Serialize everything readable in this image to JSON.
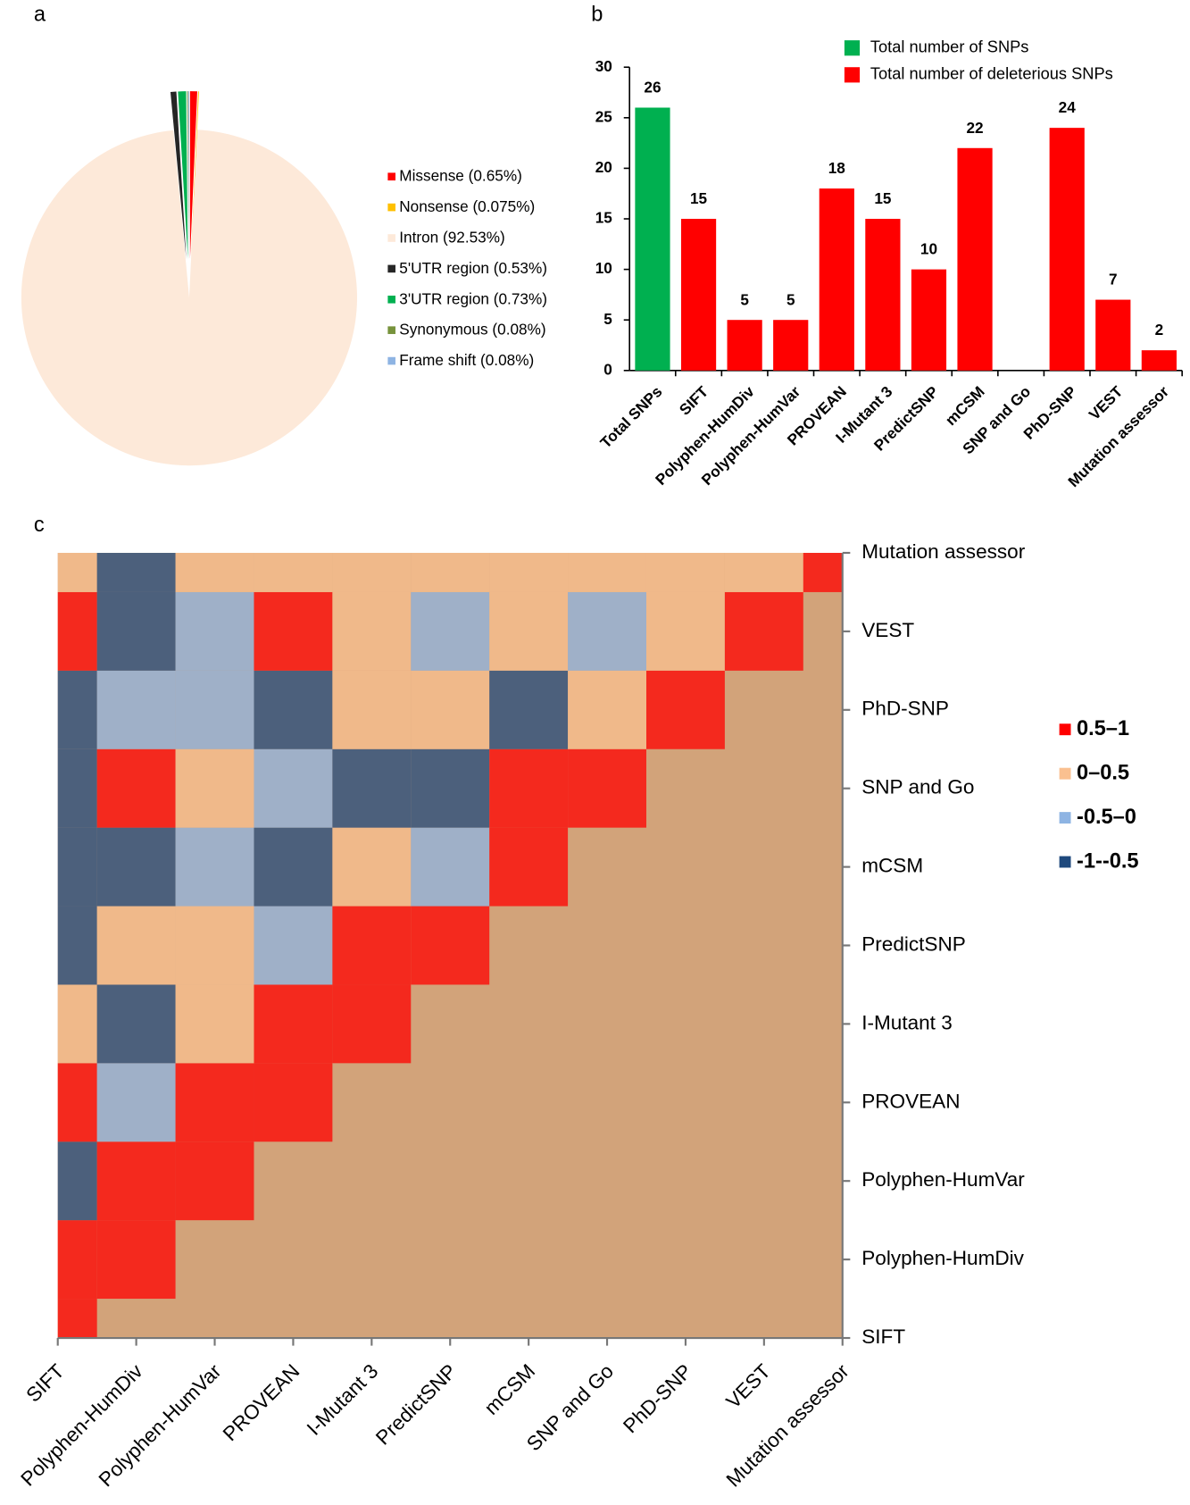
{
  "chart_data": [
    {
      "type": "pie",
      "label": "a",
      "categories": [
        "Missense",
        "Nonsense",
        "Intron",
        "5'UTR region",
        "3'UTR region",
        "Synonymous",
        "Frame shift"
      ],
      "values": [
        0.65,
        0.075,
        92.53,
        0.53,
        0.73,
        0.08,
        0.08
      ],
      "value_labels": [
        "(0.65%)",
        "(0.075%)",
        "(92.53%)",
        "(0.53%)",
        "(0.73%)",
        "(0.08%)",
        "(0.08%)"
      ],
      "colors": [
        "#ff0000",
        "#ffc000",
        "#fde9d9",
        "#262626",
        "#00b050",
        "#77933c",
        "#8eb4e3"
      ],
      "exploded": [
        true,
        true,
        false,
        true,
        true,
        true,
        true
      ]
    },
    {
      "type": "bar",
      "label": "b",
      "categories": [
        "Total SNPs",
        "SIFT",
        "Polyphen-HumDiv",
        "Polyphen-HumVar",
        "PROVEAN",
        "I-Mutant 3",
        "PredictSNP",
        "mCSM",
        "SNP and Go",
        "PhD-SNP",
        "VEST",
        "Mutation assessor"
      ],
      "series": [
        {
          "name": "Total number of SNPs",
          "color": "#00b050",
          "values": [
            26,
            null,
            null,
            null,
            null,
            null,
            null,
            null,
            null,
            null,
            null,
            null
          ]
        },
        {
          "name": "Total number of deleterious SNPs",
          "color": "#ff0000",
          "values": [
            null,
            15,
            5,
            5,
            18,
            15,
            10,
            22,
            null,
            24,
            7,
            2
          ]
        }
      ],
      "ylim": [
        0,
        30
      ],
      "yticks": [
        0,
        5,
        10,
        15,
        20,
        25,
        30
      ],
      "legend": "top-right"
    },
    {
      "type": "heatmap",
      "label": "c",
      "categories": [
        "SIFT",
        "Polyphen-HumDiv",
        "Polyphen-HumVar",
        "PROVEAN",
        "I-Mutant 3",
        "PredictSNP",
        "mCSM",
        "SNP and Go",
        "PhD-SNP",
        "VEST",
        "Mutation assessor"
      ],
      "values": [
        [
          1
        ],
        [
          0.7,
          1
        ],
        [
          -0.6,
          0.7,
          1
        ],
        [
          0.6,
          -0.4,
          0.6,
          1
        ],
        [
          0.2,
          -0.6,
          0.2,
          0.6,
          1
        ],
        [
          -0.6,
          0.2,
          0.3,
          -0.4,
          0.6,
          1
        ],
        [
          -0.6,
          -0.6,
          -0.4,
          -0.7,
          0.3,
          -0.4,
          1
        ],
        [
          -0.6,
          0.6,
          0.3,
          -0.4,
          -0.6,
          -0.6,
          0.6,
          1
        ],
        [
          -0.6,
          -0.3,
          -0.3,
          -0.6,
          0.2,
          0.1,
          -0.6,
          0.3,
          1
        ],
        [
          0.6,
          -0.7,
          -0.3,
          0.6,
          0.3,
          -0.4,
          0.2,
          -0.4,
          0.3,
          1
        ],
        [
          0.2,
          -0.6,
          0.3,
          0.3,
          0.2,
          0.1,
          0.3,
          0.1,
          0.3,
          0.4,
          1
        ]
      ],
      "bins": [
        {
          "label": "0.5–1",
          "from": 0.5,
          "to": 1,
          "color": "#ff0000"
        },
        {
          "label": "0–0.5",
          "from": 0,
          "to": 0.5,
          "color": "#fac090"
        },
        {
          "label": "-0.5–0",
          "from": -0.5,
          "to": 0,
          "color": "#8eb4e3"
        },
        {
          "label": "-1--0.5",
          "from": -1,
          "to": -0.5,
          "color": "#1f497d"
        }
      ]
    }
  ]
}
